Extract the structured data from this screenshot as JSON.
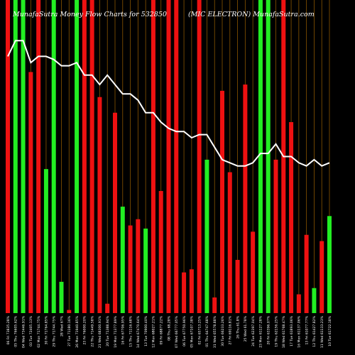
{
  "header": {
    "left_text": "MunafaSutra  Money Flow  Charts for 532850",
    "right_text": "(MIC ELECTRON) MunafaSutra.com"
  },
  "colors": {
    "background": "#000000",
    "buy_bar": "#22ee22",
    "sell_bar": "#ee1111",
    "price_line": "#ffffff",
    "grid_line": "#8a5500"
  },
  "chart_data": {
    "type": "bar",
    "title": "MunafaSutra  Money Flow  Charts for 532850",
    "subtitle": "(MIC ELECTRON) MunafaSutra.com",
    "ylim": [
      0,
      100
    ],
    "grid": true,
    "categories": [
      "06 Fri 73835.28%",
      "05 Thu 76605.62%",
      "04 Wed 73446.91%",
      "03 Tue 72405.13%",
      "02 Mon 71744.75%",
      "30 Fri 71764.85%",
      "29 Thu 71744.75%",
      "28 Wed 67%",
      "27 Tue 71180.16%",
      "26 Mon 71940.85%",
      "23 Fri 76000.20%",
      "22 Thu 71449.58%",
      "21 Wed 68300.91%",
      "20 Tue 71388.94%",
      "19 Mon 71377.89%",
      "16 Fri 67706.95%",
      "15 Thu 71116.68%",
      "14 Wed 67470.64%",
      "13 Tue 70900.40%",
      "12 Mon 68027.21%",
      "09 Fri 68877.22%",
      "08 Thu 68,28%",
      "07 Wed 66777.05%",
      "06 Tue 67750.96%",
      "05 Mon 67107.38%",
      "02 Fri 65713.25%",
      "01 Thu 64747.68%",
      "31 Wed 65578.88%",
      "30 Tue 66233.26%",
      "27 Fri 69116.81%",
      "26 Thu 61.8%",
      "25 Wed 61.78%",
      "24 Tue 62397.04%",
      "23 Mon 61127.28%",
      "20 Fri 63396.07%",
      "19 Thu 62156.25%",
      "18 Wed 61768.47%",
      "17 Tue 61893.06%",
      "16 Mon 61137.06%",
      "13 Fri 61077.77%",
      "12 Thu 61427.82%",
      "11 Wed 61133.23%",
      "10 Tue 61722.18%"
    ],
    "series": [
      {
        "type": "bar",
        "values": [
          100,
          100,
          100,
          77,
          100,
          46,
          100,
          10,
          1,
          100,
          100,
          100,
          69,
          3,
          64,
          34,
          28,
          30,
          27,
          100,
          39,
          100,
          100,
          13,
          14,
          100,
          49,
          5,
          71,
          45,
          17,
          73,
          26,
          100,
          100,
          49,
          100,
          61,
          6,
          25,
          8,
          23,
          31
        ]
      },
      {
        "type": "line",
        "values": [
          82,
          87,
          87,
          80,
          82,
          82,
          81,
          79,
          79,
          80,
          76,
          76,
          73,
          76,
          73,
          70,
          70,
          68,
          64,
          64,
          61,
          59,
          58,
          58,
          56,
          57,
          57,
          53,
          49,
          48,
          47,
          47,
          48,
          51,
          51,
          54,
          50,
          50,
          48,
          47,
          49,
          47,
          48
        ]
      }
    ],
    "bar_color": [
      "sell",
      "buy",
      "buy",
      "sell",
      "sell",
      "buy",
      "buy",
      "buy",
      "sell",
      "buy",
      "sell",
      "sell",
      "sell",
      "sell",
      "sell",
      "buy",
      "sell",
      "sell",
      "buy",
      "sell",
      "sell",
      "sell",
      "sell",
      "sell",
      "sell",
      "sell",
      "buy",
      "sell",
      "sell",
      "sell",
      "sell",
      "sell",
      "sell",
      "buy",
      "buy",
      "sell",
      "sell",
      "sell",
      "sell",
      "sell",
      "buy",
      "sell",
      "buy"
    ]
  }
}
